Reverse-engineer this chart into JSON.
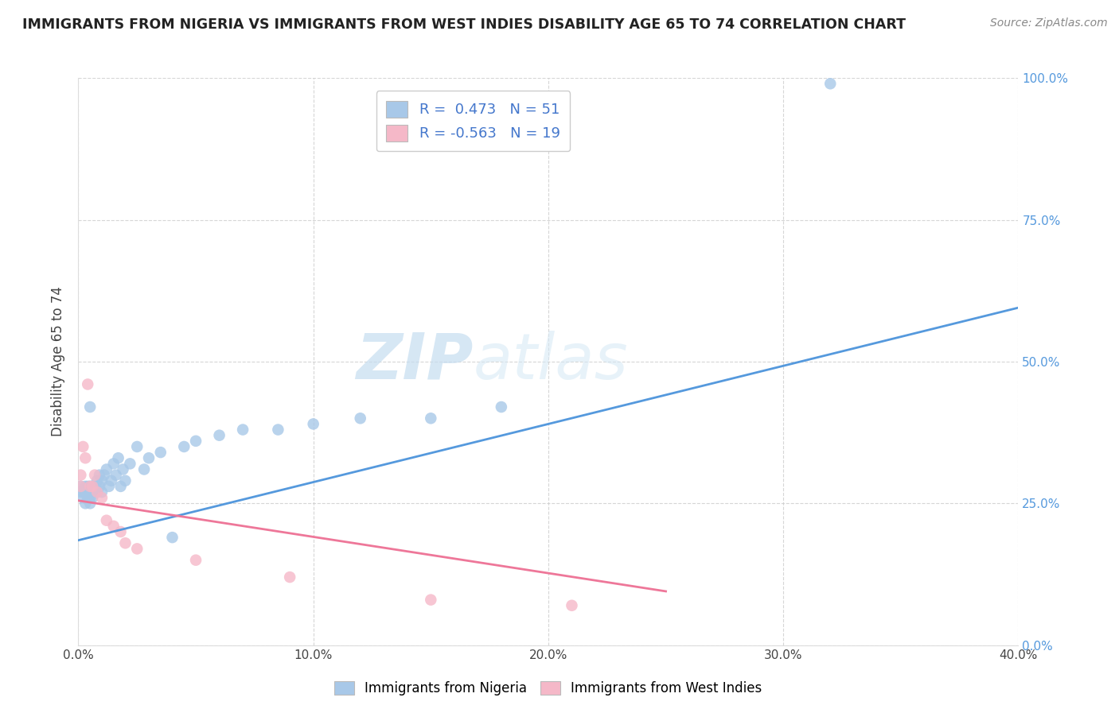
{
  "title": "IMMIGRANTS FROM NIGERIA VS IMMIGRANTS FROM WEST INDIES DISABILITY AGE 65 TO 74 CORRELATION CHART",
  "source": "Source: ZipAtlas.com",
  "ylabel": "Disability Age 65 to 74",
  "xlim": [
    0.0,
    0.4
  ],
  "ylim": [
    0.0,
    1.0
  ],
  "xticks": [
    0.0,
    0.1,
    0.2,
    0.3,
    0.4
  ],
  "xtick_labels": [
    "0.0%",
    "10.0%",
    "20.0%",
    "30.0%",
    "40.0%"
  ],
  "yticks": [
    0.0,
    0.25,
    0.5,
    0.75,
    1.0
  ],
  "ytick_labels_left": [
    "",
    "",
    "",
    "",
    ""
  ],
  "ytick_labels_right": [
    "0.0%",
    "25.0%",
    "50.0%",
    "75.0%",
    "100.0%"
  ],
  "blue_color": "#a8c8e8",
  "pink_color": "#f5b8c8",
  "blue_line_color": "#5599dd",
  "pink_line_color": "#ee7799",
  "R_blue": 0.473,
  "N_blue": 51,
  "R_pink": -0.563,
  "N_pink": 19,
  "legend_label_blue": "Immigrants from Nigeria",
  "legend_label_pink": "Immigrants from West Indies",
  "watermark_zip": "ZIP",
  "watermark_atlas": "atlas",
  "background_color": "#ffffff",
  "grid_color": "#cccccc",
  "blue_x": [
    0.001,
    0.001,
    0.002,
    0.002,
    0.003,
    0.003,
    0.003,
    0.004,
    0.004,
    0.004,
    0.005,
    0.005,
    0.005,
    0.006,
    0.006,
    0.006,
    0.007,
    0.007,
    0.008,
    0.008,
    0.009,
    0.009,
    0.01,
    0.01,
    0.011,
    0.012,
    0.013,
    0.014,
    0.015,
    0.016,
    0.017,
    0.018,
    0.019,
    0.02,
    0.022,
    0.025,
    0.028,
    0.03,
    0.035,
    0.04,
    0.045,
    0.05,
    0.06,
    0.07,
    0.085,
    0.1,
    0.12,
    0.15,
    0.18,
    0.005,
    0.32
  ],
  "blue_y": [
    0.27,
    0.28,
    0.26,
    0.27,
    0.25,
    0.27,
    0.28,
    0.26,
    0.27,
    0.28,
    0.25,
    0.26,
    0.28,
    0.27,
    0.28,
    0.26,
    0.27,
    0.28,
    0.27,
    0.29,
    0.28,
    0.3,
    0.27,
    0.29,
    0.3,
    0.31,
    0.28,
    0.29,
    0.32,
    0.3,
    0.33,
    0.28,
    0.31,
    0.29,
    0.32,
    0.35,
    0.31,
    0.33,
    0.34,
    0.19,
    0.35,
    0.36,
    0.37,
    0.38,
    0.38,
    0.39,
    0.4,
    0.4,
    0.42,
    0.42,
    0.99
  ],
  "pink_x": [
    0.001,
    0.001,
    0.002,
    0.003,
    0.004,
    0.005,
    0.006,
    0.007,
    0.008,
    0.01,
    0.012,
    0.015,
    0.018,
    0.02,
    0.025,
    0.05,
    0.09,
    0.15,
    0.21
  ],
  "pink_y": [
    0.28,
    0.3,
    0.35,
    0.33,
    0.46,
    0.28,
    0.28,
    0.3,
    0.27,
    0.26,
    0.22,
    0.21,
    0.2,
    0.18,
    0.17,
    0.15,
    0.12,
    0.08,
    0.07
  ],
  "blue_line_x0": 0.0,
  "blue_line_y0": 0.185,
  "blue_line_x1": 0.4,
  "blue_line_y1": 0.595,
  "pink_line_x0": 0.0,
  "pink_line_y0": 0.255,
  "pink_line_x1": 0.25,
  "pink_line_y1": 0.095
}
